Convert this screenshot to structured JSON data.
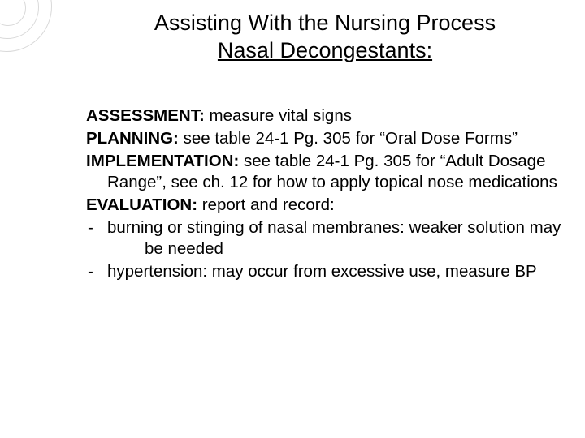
{
  "title": {
    "line1": "Assisting With the Nursing Process",
    "line2": "Nasal Decongestants:"
  },
  "sections": {
    "assessment": {
      "label": "ASSESSMENT:",
      "text": " measure vital signs"
    },
    "planning": {
      "label": "PLANNING:",
      "text": " see table 24-1 Pg. 305 for “Oral Dose Forms”"
    },
    "implementation": {
      "label": "IMPLEMENTATION:",
      "text": " see table 24-1 Pg. 305 for “Adult Dosage Range”, see ch. 12 for how to apply topical nose medications"
    },
    "evaluation": {
      "label": "EVALUATION:",
      "text": " report and record:"
    }
  },
  "bullets": [
    {
      "dash": "-",
      "pre": "burning or stinging of nasal membranes: weaker solution may",
      "post": "be needed"
    },
    {
      "dash": "-",
      "pre": "hypertension: may occur from excessive use, measure BP",
      "post": ""
    }
  ],
  "style": {
    "title_fontsize": 27,
    "body_fontsize": 20.5,
    "text_color": "#000000",
    "background_color": "#ffffff",
    "circle_stroke": "#d9d9d9",
    "font_family": "Arial"
  }
}
